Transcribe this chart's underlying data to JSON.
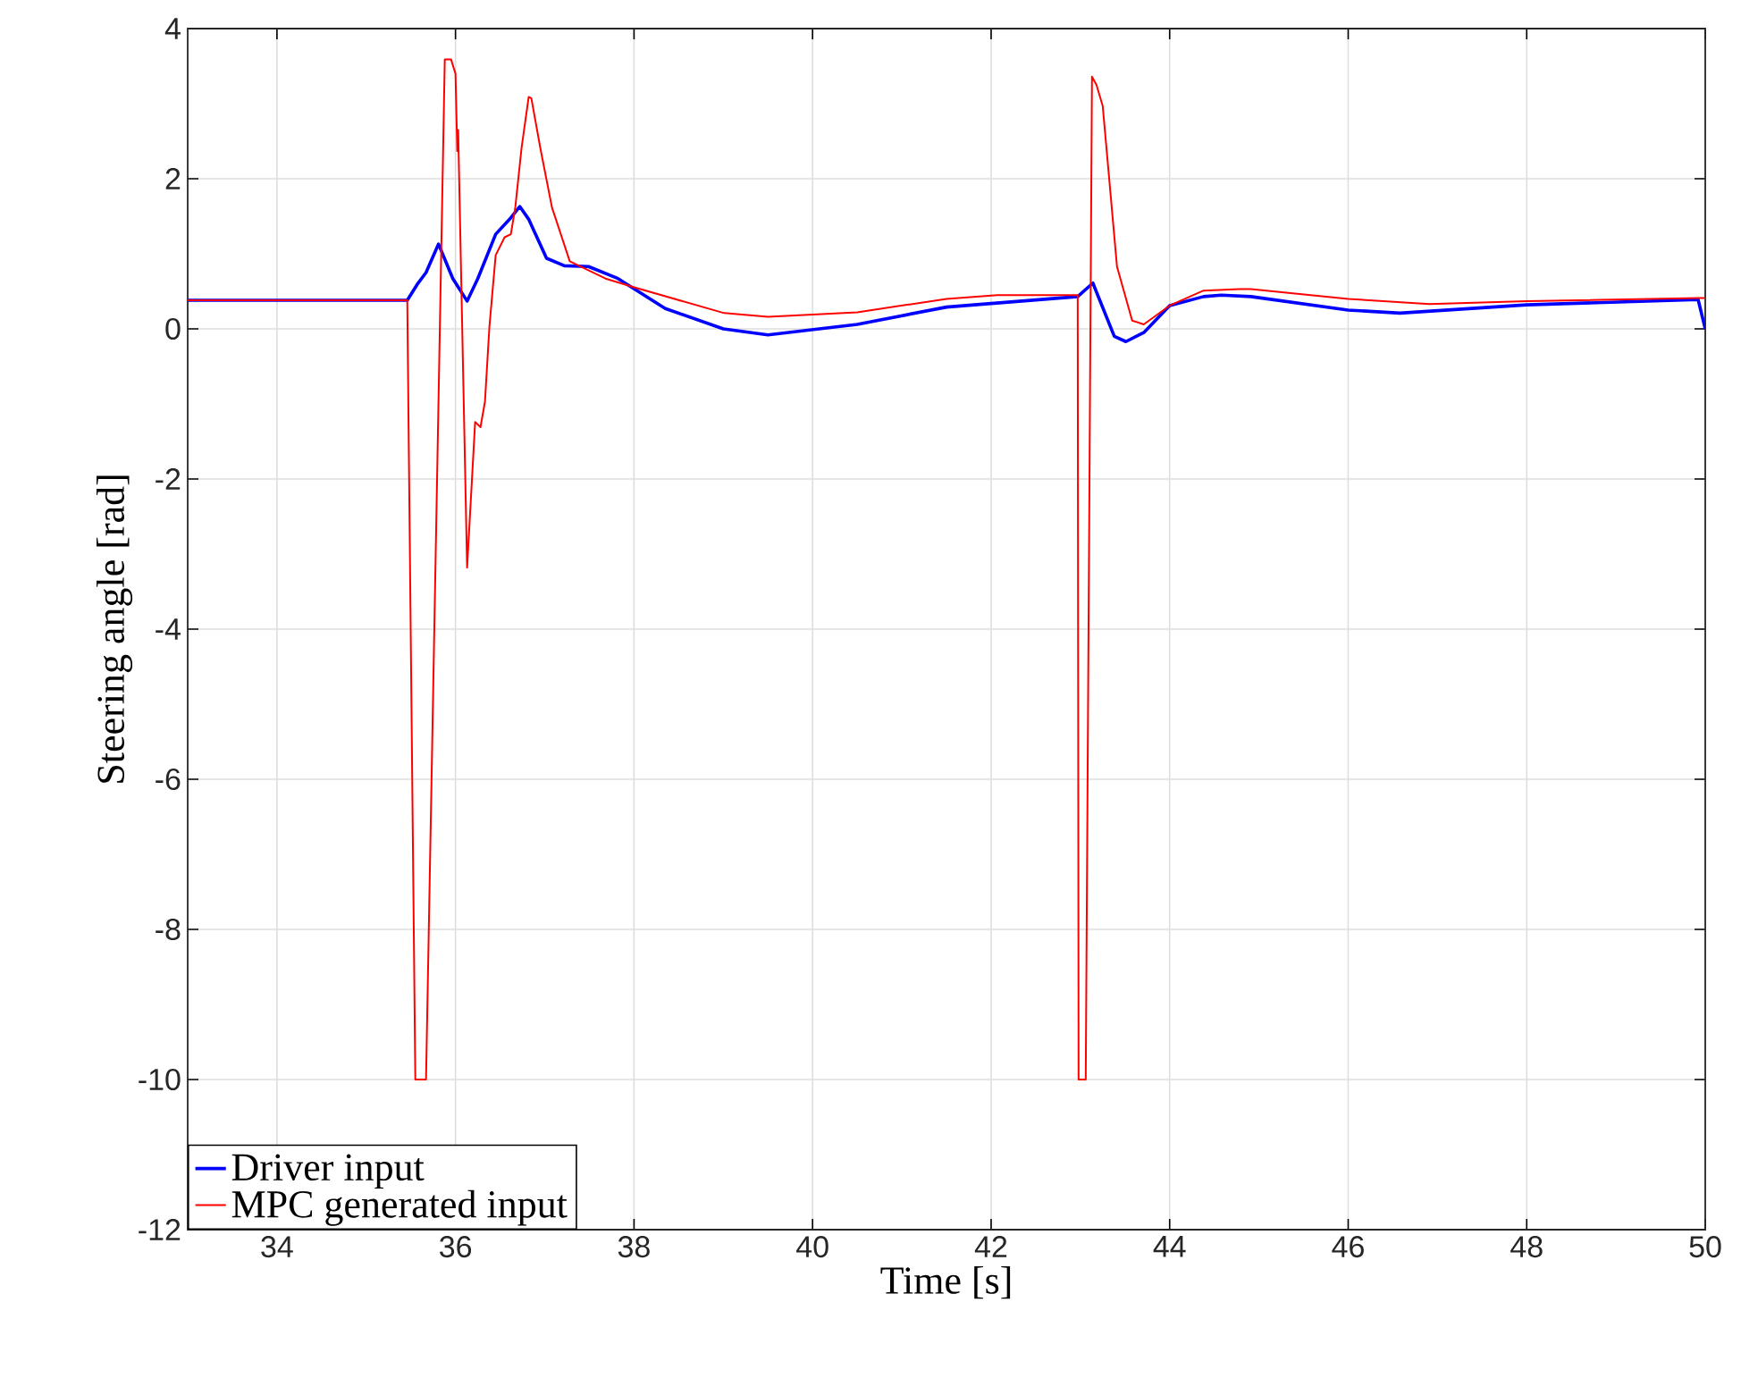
{
  "chart_data": {
    "type": "line",
    "xlabel": "Time [s]",
    "ylabel": "Steering angle [rad]",
    "xlim": [
      33,
      50
    ],
    "ylim": [
      -12,
      4
    ],
    "xticks": [
      34,
      36,
      38,
      40,
      42,
      44,
      46,
      48,
      50
    ],
    "yticks": [
      -12,
      -10,
      -8,
      -6,
      -4,
      -2,
      0,
      2,
      4
    ],
    "grid": true,
    "legend": "bottom left",
    "line_style": "solid",
    "series": [
      {
        "name": "Driver input",
        "color": "#0000ff",
        "x": [
          33,
          35.46,
          35.57,
          35.67,
          35.81,
          35.97,
          36.13,
          36.25,
          36.45,
          36.62,
          36.72,
          36.82,
          37.02,
          37.22,
          37.49,
          37.82,
          38.35,
          39.0,
          39.5,
          40.5,
          41.5,
          42.97,
          43.14,
          43.38,
          43.51,
          43.71,
          44.0,
          44.38,
          44.58,
          44.91,
          46.0,
          46.58,
          48.0,
          49.92,
          50
        ],
        "values": [
          0.38,
          0.38,
          0.59,
          0.75,
          1.13,
          0.67,
          0.37,
          0.67,
          1.26,
          1.48,
          1.63,
          1.46,
          0.94,
          0.84,
          0.83,
          0.67,
          0.27,
          0.0,
          -0.08,
          0.06,
          0.29,
          0.43,
          0.61,
          -0.1,
          -0.17,
          -0.05,
          0.31,
          0.43,
          0.45,
          0.43,
          0.25,
          0.21,
          0.32,
          0.39,
          0.0
        ]
      },
      {
        "name": "MPC generated input",
        "color": "#ff0000",
        "x": [
          33,
          35.46,
          35.55,
          35.67,
          35.88,
          35.95,
          36.0,
          36.02,
          36.03,
          36.13,
          36.22,
          36.28,
          36.33,
          36.38,
          36.45,
          36.55,
          36.62,
          36.67,
          36.74,
          36.82,
          36.85,
          36.95,
          37.08,
          37.28,
          37.68,
          38.01,
          39.01,
          39.5,
          40.5,
          41.5,
          42.07,
          42.97,
          42.98,
          43.06,
          43.13,
          43.18,
          43.25,
          43.31,
          43.41,
          43.58,
          43.71,
          44.0,
          44.38,
          44.78,
          44.91,
          46.0,
          46.91,
          48.0,
          49.92,
          50
        ],
        "values": [
          0.38,
          0.38,
          -10,
          -10,
          3.59,
          3.59,
          3.4,
          2.37,
          2.65,
          -3.18,
          -1.24,
          -1.31,
          -0.97,
          0.03,
          0.98,
          1.22,
          1.26,
          1.62,
          2.41,
          3.09,
          3.07,
          2.41,
          1.62,
          0.9,
          0.67,
          0.55,
          0.21,
          0.16,
          0.22,
          0.4,
          0.45,
          0.45,
          -10,
          -10,
          3.36,
          3.25,
          2.97,
          2.17,
          0.83,
          0.11,
          0.06,
          0.31,
          0.51,
          0.53,
          0.53,
          0.4,
          0.33,
          0.37,
          0.41,
          0.41
        ]
      }
    ]
  }
}
